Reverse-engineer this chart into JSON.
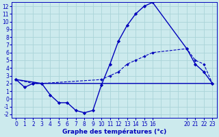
{
  "title": "Graphe des températures (°c)",
  "bg_color": "#cceaed",
  "grid_color": "#aad4d8",
  "line_color": "#0000bb",
  "xlim": [
    -0.5,
    23.5
  ],
  "ylim": [
    -2.5,
    12.5
  ],
  "xticks": [
    0,
    1,
    2,
    3,
    4,
    5,
    6,
    7,
    8,
    9,
    10,
    11,
    12,
    13,
    14,
    15,
    16,
    20,
    21,
    22,
    23
  ],
  "yticks": [
    -2,
    -1,
    0,
    1,
    2,
    3,
    4,
    5,
    6,
    7,
    8,
    9,
    10,
    11,
    12
  ],
  "curve1_x": [
    0,
    1,
    2,
    3,
    4,
    5,
    6,
    7,
    8,
    9,
    10,
    11,
    12,
    13,
    14,
    15,
    16,
    20,
    21,
    22,
    23
  ],
  "curve1_y": [
    2.5,
    1.5,
    2.0,
    2.0,
    0.5,
    -0.5,
    -0.5,
    -1.5,
    -1.8,
    -1.5,
    1.8,
    4.5,
    7.5,
    9.5,
    11.0,
    12.0,
    12.5,
    6.5,
    4.5,
    3.5,
    2.0
  ],
  "curve2_x": [
    0,
    2,
    3,
    10,
    11,
    12,
    13,
    14,
    15,
    16,
    20,
    21,
    22,
    23
  ],
  "curve2_y": [
    2.5,
    2.0,
    2.0,
    2.5,
    3.0,
    3.5,
    4.5,
    5.0,
    5.5,
    6.0,
    6.5,
    5.0,
    4.5,
    2.0
  ],
  "curve3_x": [
    0,
    3,
    9,
    16,
    23
  ],
  "curve3_y": [
    2.5,
    2.0,
    2.0,
    2.0,
    2.0
  ],
  "xlabel_fontsize": 6.5,
  "tick_fontsize": 5.5,
  "title_fontweight": "bold"
}
